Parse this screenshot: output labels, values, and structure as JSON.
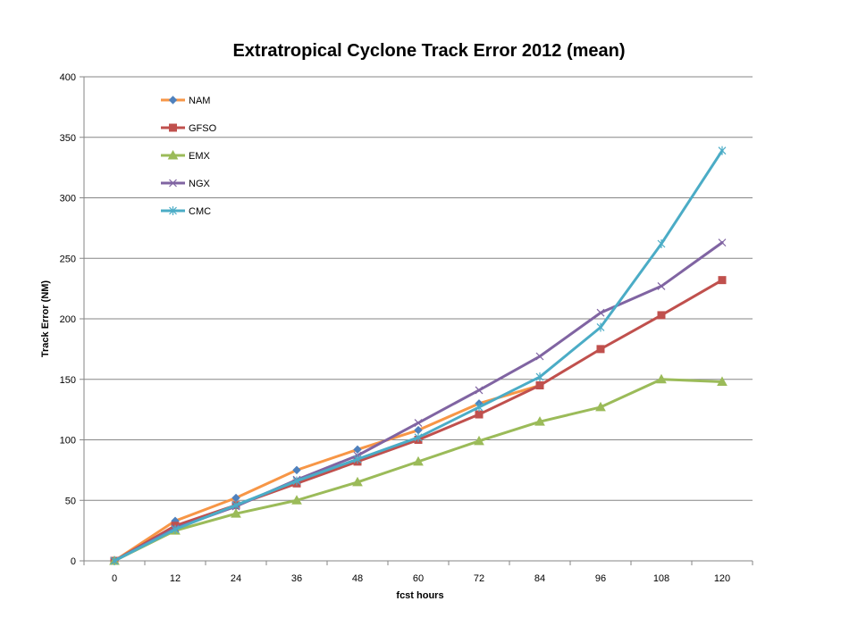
{
  "chart_data": {
    "type": "line",
    "title": "Extratropical Cyclone Track Error 2012 (mean)",
    "xlabel": "fcst hours",
    "ylabel": "Track Error  (NM)",
    "categories": [
      "0",
      "12",
      "24",
      "36",
      "48",
      "60",
      "72",
      "84",
      "96",
      "108",
      "120"
    ],
    "ylim": [
      0,
      400
    ],
    "yticks": [
      0,
      50,
      100,
      150,
      200,
      250,
      300,
      350,
      400
    ],
    "grid": "horizontal",
    "legend_position": "top-left",
    "series": [
      {
        "name": "NAM",
        "color": "#F79646",
        "marker": "diamond",
        "marker_color": "#4F81BD",
        "values": [
          0,
          33,
          52,
          75,
          92,
          108,
          130,
          145,
          null,
          null,
          null
        ]
      },
      {
        "name": "GFSO",
        "color": "#C0504D",
        "marker": "square",
        "marker_color": "#C0504D",
        "values": [
          0,
          29,
          46,
          64,
          82,
          100,
          121,
          145,
          175,
          203,
          232
        ]
      },
      {
        "name": "EMX",
        "color": "#9BBB59",
        "marker": "triangle",
        "marker_color": "#9BBB59",
        "values": [
          0,
          25,
          39,
          50,
          65,
          82,
          99,
          115,
          127,
          150,
          148
        ]
      },
      {
        "name": "NGX",
        "color": "#8064A2",
        "marker": "x",
        "marker_color": "#8064A2",
        "values": [
          0,
          27,
          45,
          67,
          87,
          114,
          141,
          169,
          205,
          227,
          263
        ]
      },
      {
        "name": "CMC",
        "color": "#4BACC6",
        "marker": "star",
        "marker_color": "#4BACC6",
        "values": [
          0,
          26,
          46,
          66,
          84,
          102,
          127,
          152,
          193,
          262,
          339
        ]
      }
    ]
  }
}
